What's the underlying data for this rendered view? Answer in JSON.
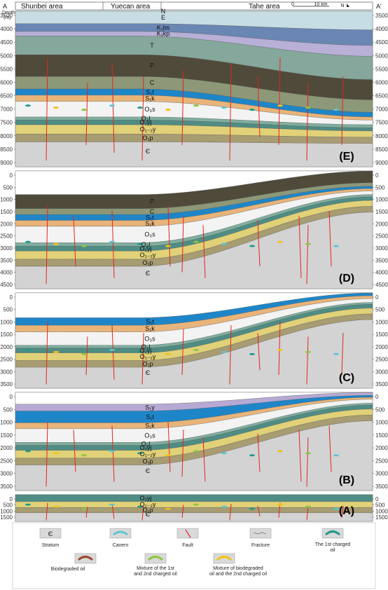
{
  "header": {
    "left_letter": "A",
    "right_letter": "A'",
    "depth_label": "Depth",
    "unit_label": "(m)",
    "areas": [
      "Shunbei area",
      "Yuecan area",
      "Tahe area"
    ],
    "scale_zero": "0",
    "scale_text": "10 km",
    "north": "N"
  },
  "panels": [
    {
      "id": "E",
      "label": "(E)",
      "ticks": [
        "3500",
        "4000",
        "4500",
        "5000",
        "5500",
        "6000",
        "6500",
        "7000",
        "7500",
        "8000",
        "8500",
        "9000"
      ],
      "layers": [
        "N",
        "E",
        "K1bs",
        "K1kp",
        "T",
        "P",
        "C",
        "S1t",
        "S1k",
        "O3s",
        "O3l",
        "O2yj",
        "O1-2y",
        "O1p",
        "Є"
      ]
    },
    {
      "id": "D",
      "label": "(D)",
      "ticks": [
        "0",
        "500",
        "1000",
        "1500",
        "2000",
        "2500",
        "3000",
        "3500",
        "4000",
        "4500"
      ],
      "layers": [
        "P",
        "C",
        "S1t",
        "S1k",
        "O3s",
        "O3l",
        "O2yj",
        "O1-2y",
        "O1p",
        "Є"
      ]
    },
    {
      "id": "C",
      "label": "(C)",
      "ticks": [
        "0",
        "500",
        "1000",
        "1500",
        "2000",
        "2500",
        "3000",
        "3500"
      ],
      "layers": [
        "S1t",
        "S1k",
        "O3s",
        "O3l",
        "O2yj",
        "O1-2y",
        "O1p",
        "Є"
      ]
    },
    {
      "id": "B",
      "label": "(B)",
      "ticks": [
        "0",
        "500",
        "1000",
        "1500",
        "2000",
        "2500",
        "3000",
        "3500"
      ],
      "layers": [
        "S1y",
        "S1t",
        "S1k",
        "O3s",
        "O3l",
        "O2yj",
        "O1-2y",
        "O1p",
        "Є"
      ]
    },
    {
      "id": "A",
      "label": "(A)",
      "ticks": [
        "0",
        "500",
        "1000",
        "1500"
      ],
      "layers": [
        "O2yj",
        "O1-2y",
        "O1p",
        "Є"
      ]
    }
  ],
  "legend": {
    "items": [
      {
        "symbol": "Є",
        "label": "Stratum",
        "icon": "stratum-icon"
      },
      {
        "label": "Cavern",
        "icon": "cavern-icon"
      },
      {
        "label": "Fault",
        "icon": "fault-icon"
      },
      {
        "label": "Fracture",
        "icon": "fracture-icon"
      },
      {
        "label": "The 1st charged oil",
        "icon": "first-oil-icon"
      },
      {
        "label": "Biodegraded oil",
        "icon": "biodegraded-oil-icon"
      },
      {
        "label": "Mixture of the 1st and 2nd charged oil",
        "icon": "mixture-1-2-icon"
      },
      {
        "label": "Mixture of biodegraded oil and the 2nd charged oil",
        "icon": "mixture-bio-2-icon"
      }
    ]
  },
  "colors": {
    "N": "#f6f2cf",
    "E": "#c7dde4",
    "K1bs": "#6a86b3",
    "K1kp": "#b8b0d6",
    "T": "#85a79c",
    "P": "#4f4a3a",
    "C": "#8c9877",
    "S1y": "#b7a9d4",
    "S1t": "#1e86c8",
    "S1k": "#e8b47a",
    "O3s": "#f3f3f3",
    "O3l": "#7fae9f",
    "O2yj": "#4f8c84",
    "O1-2y": "#e1d178",
    "O1p": "#a79c72",
    "Cambrian": "#d3d3d3",
    "fault": "#e3261d",
    "cavern": "#5cc6d3",
    "first_oil": "#1f9a8b",
    "bio_oil": "#9a4a33",
    "mix12_oil": "#8ec63f",
    "mixbio2_oil": "#f2c21a"
  }
}
